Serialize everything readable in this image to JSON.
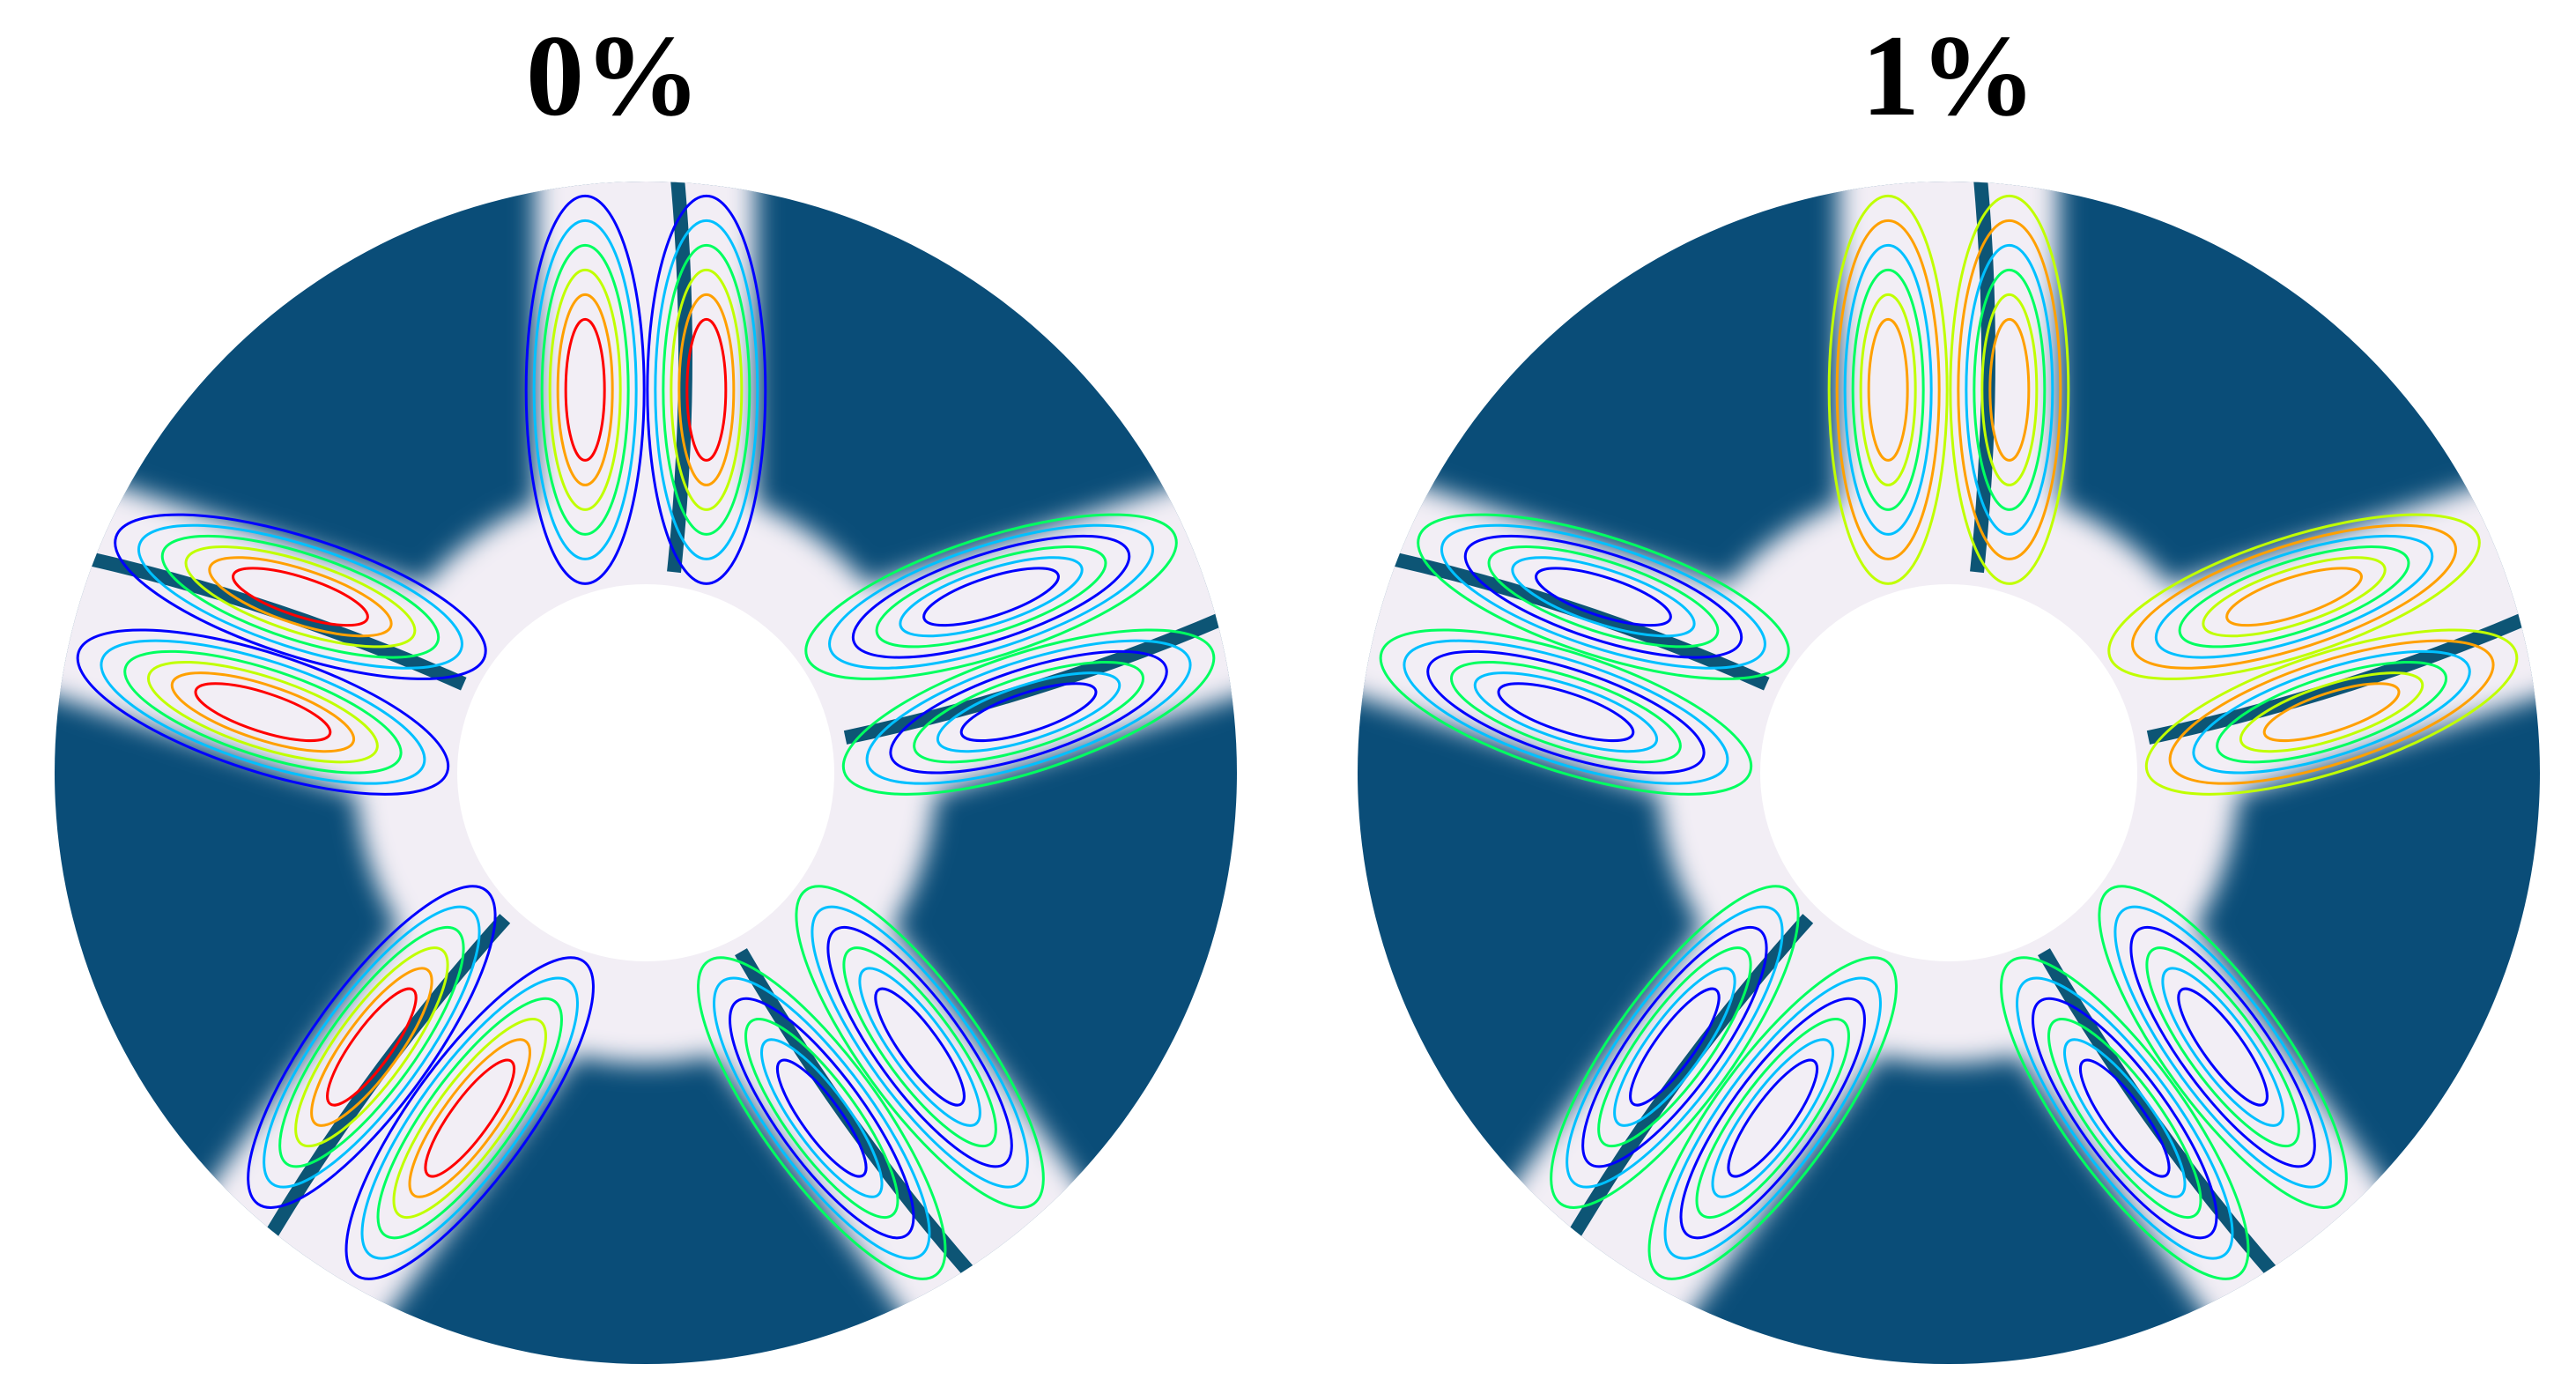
{
  "panels": [
    {
      "title": "0%"
    },
    {
      "title": "1%"
    }
  ],
  "colors": {
    "solid": "#0a4d78",
    "fluid": "#f2eef5",
    "hole": "#ffffff",
    "blade": "#0d5575",
    "streamline_scale": [
      "#0000ff",
      "#00c0ff",
      "#00ff60",
      "#c0ff00",
      "#ffa000",
      "#ff0000"
    ]
  }
}
